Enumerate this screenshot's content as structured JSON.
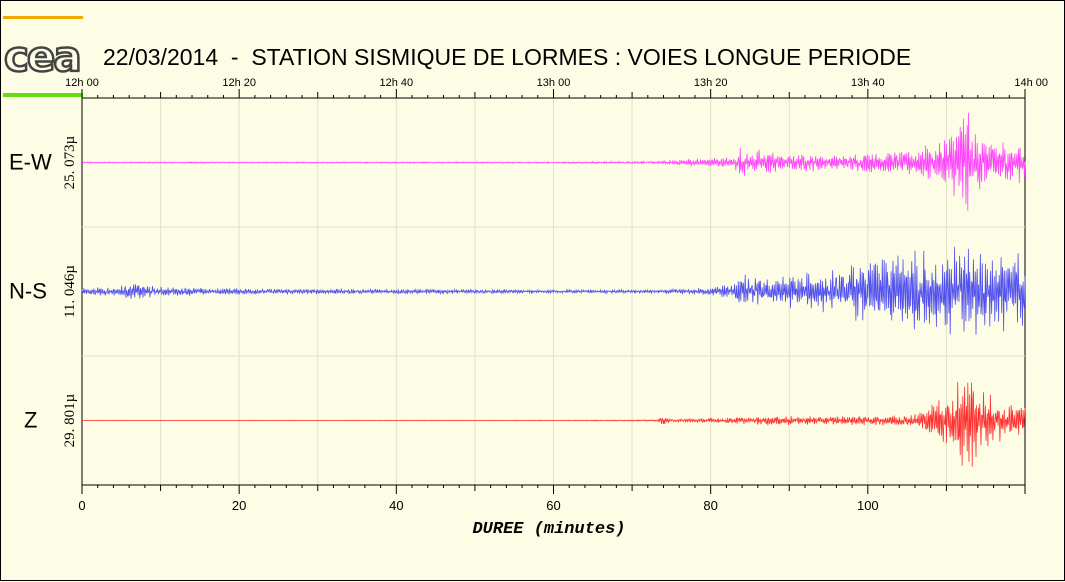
{
  "logo": {
    "text": "cea"
  },
  "chart_data": {
    "type": "line",
    "title": "22/03/2014  -  STATION SISMIQUE DE LORMES : VOIES LONGUE PERIODE",
    "xlabel": "DUREE (minutes)",
    "xlim": [
      0,
      120
    ],
    "x_ticks": [
      0,
      20,
      40,
      60,
      80,
      100
    ],
    "top_axis": {
      "labels": [
        "12h 00",
        "12h 20",
        "12h 40",
        "13h 00",
        "13h 20",
        "13h 40",
        "14h 00"
      ],
      "minutes": [
        0,
        20,
        40,
        60,
        80,
        100,
        120
      ]
    },
    "grid": true,
    "series": [
      {
        "name": "E-W",
        "amplitude_label": "25. 073µ",
        "color": "#ff44ff",
        "envelope": [
          [
            0,
            0.01
          ],
          [
            10,
            0.012
          ],
          [
            20,
            0.01
          ],
          [
            60,
            0.012
          ],
          [
            73,
            0.02
          ],
          [
            77,
            0.06
          ],
          [
            83,
            0.1
          ],
          [
            84,
            0.3
          ],
          [
            85,
            0.12
          ],
          [
            86,
            0.22
          ],
          [
            88,
            0.18
          ],
          [
            90,
            0.12
          ],
          [
            92,
            0.16
          ],
          [
            95,
            0.12
          ],
          [
            98,
            0.14
          ],
          [
            100,
            0.16
          ],
          [
            104,
            0.18
          ],
          [
            106,
            0.22
          ],
          [
            108,
            0.3
          ],
          [
            110,
            0.45
          ],
          [
            111,
            0.55
          ],
          [
            112,
            0.85
          ],
          [
            113,
            0.95
          ],
          [
            114,
            0.5
          ],
          [
            115,
            0.35
          ],
          [
            117,
            0.35
          ],
          [
            119,
            0.35
          ],
          [
            120,
            0.3
          ]
        ]
      },
      {
        "name": "N-S",
        "amplitude_label": "11. 046µ",
        "color": "#5050ee",
        "envelope": [
          [
            0,
            0.05
          ],
          [
            5,
            0.1
          ],
          [
            7,
            0.14
          ],
          [
            10,
            0.08
          ],
          [
            20,
            0.05
          ],
          [
            40,
            0.04
          ],
          [
            60,
            0.03
          ],
          [
            73,
            0.03
          ],
          [
            80,
            0.06
          ],
          [
            83,
            0.15
          ],
          [
            84,
            0.35
          ],
          [
            85,
            0.25
          ],
          [
            88,
            0.22
          ],
          [
            90,
            0.28
          ],
          [
            92,
            0.3
          ],
          [
            95,
            0.35
          ],
          [
            98,
            0.45
          ],
          [
            100,
            0.55
          ],
          [
            103,
            0.6
          ],
          [
            106,
            0.7
          ],
          [
            108,
            0.72
          ],
          [
            110,
            0.78
          ],
          [
            112,
            0.8
          ],
          [
            113,
            0.98
          ],
          [
            114,
            0.7
          ],
          [
            116,
            0.6
          ],
          [
            118,
            0.7
          ],
          [
            119,
            0.8
          ],
          [
            120,
            0.6
          ]
        ]
      },
      {
        "name": "Z",
        "amplitude_label": "29. 801µ",
        "color": "#ff3030",
        "envelope": [
          [
            0,
            0.003
          ],
          [
            60,
            0.005
          ],
          [
            73,
            0.01
          ],
          [
            74,
            0.08
          ],
          [
            75,
            0.02
          ],
          [
            77,
            0.03
          ],
          [
            80,
            0.04
          ],
          [
            84,
            0.06
          ],
          [
            86,
            0.09
          ],
          [
            88,
            0.08
          ],
          [
            92,
            0.07
          ],
          [
            96,
            0.07
          ],
          [
            100,
            0.08
          ],
          [
            104,
            0.09
          ],
          [
            106,
            0.12
          ],
          [
            108,
            0.25
          ],
          [
            110,
            0.45
          ],
          [
            111,
            0.6
          ],
          [
            112,
            0.8
          ],
          [
            113,
            0.95
          ],
          [
            114,
            0.6
          ],
          [
            115,
            0.45
          ],
          [
            117,
            0.35
          ],
          [
            119,
            0.3
          ],
          [
            120,
            0.28
          ]
        ]
      }
    ]
  }
}
